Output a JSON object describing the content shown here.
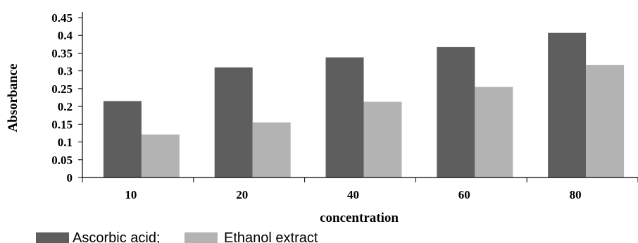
{
  "chart_data": {
    "type": "bar",
    "categories": [
      "10",
      "20",
      "40",
      "60",
      "80"
    ],
    "series": [
      {
        "name": "Ascorbic acid;",
        "values": [
          0.215,
          0.31,
          0.338,
          0.367,
          0.407
        ],
        "color": "#5e5e5e"
      },
      {
        "name": "Ethanol extract",
        "values": [
          0.121,
          0.155,
          0.213,
          0.255,
          0.317
        ],
        "color": "#b3b3b3"
      }
    ],
    "title": "",
    "xlabel": "concentration",
    "ylabel": "Absorbance",
    "ylim": [
      0,
      0.45
    ],
    "yticks": [
      "0",
      "0.05",
      "0.1",
      "0.15",
      "0.2",
      "0.25",
      "0.3",
      "0.35",
      "0.4",
      "0.45"
    ],
    "grid": false,
    "legend_position": "bottom-left"
  }
}
